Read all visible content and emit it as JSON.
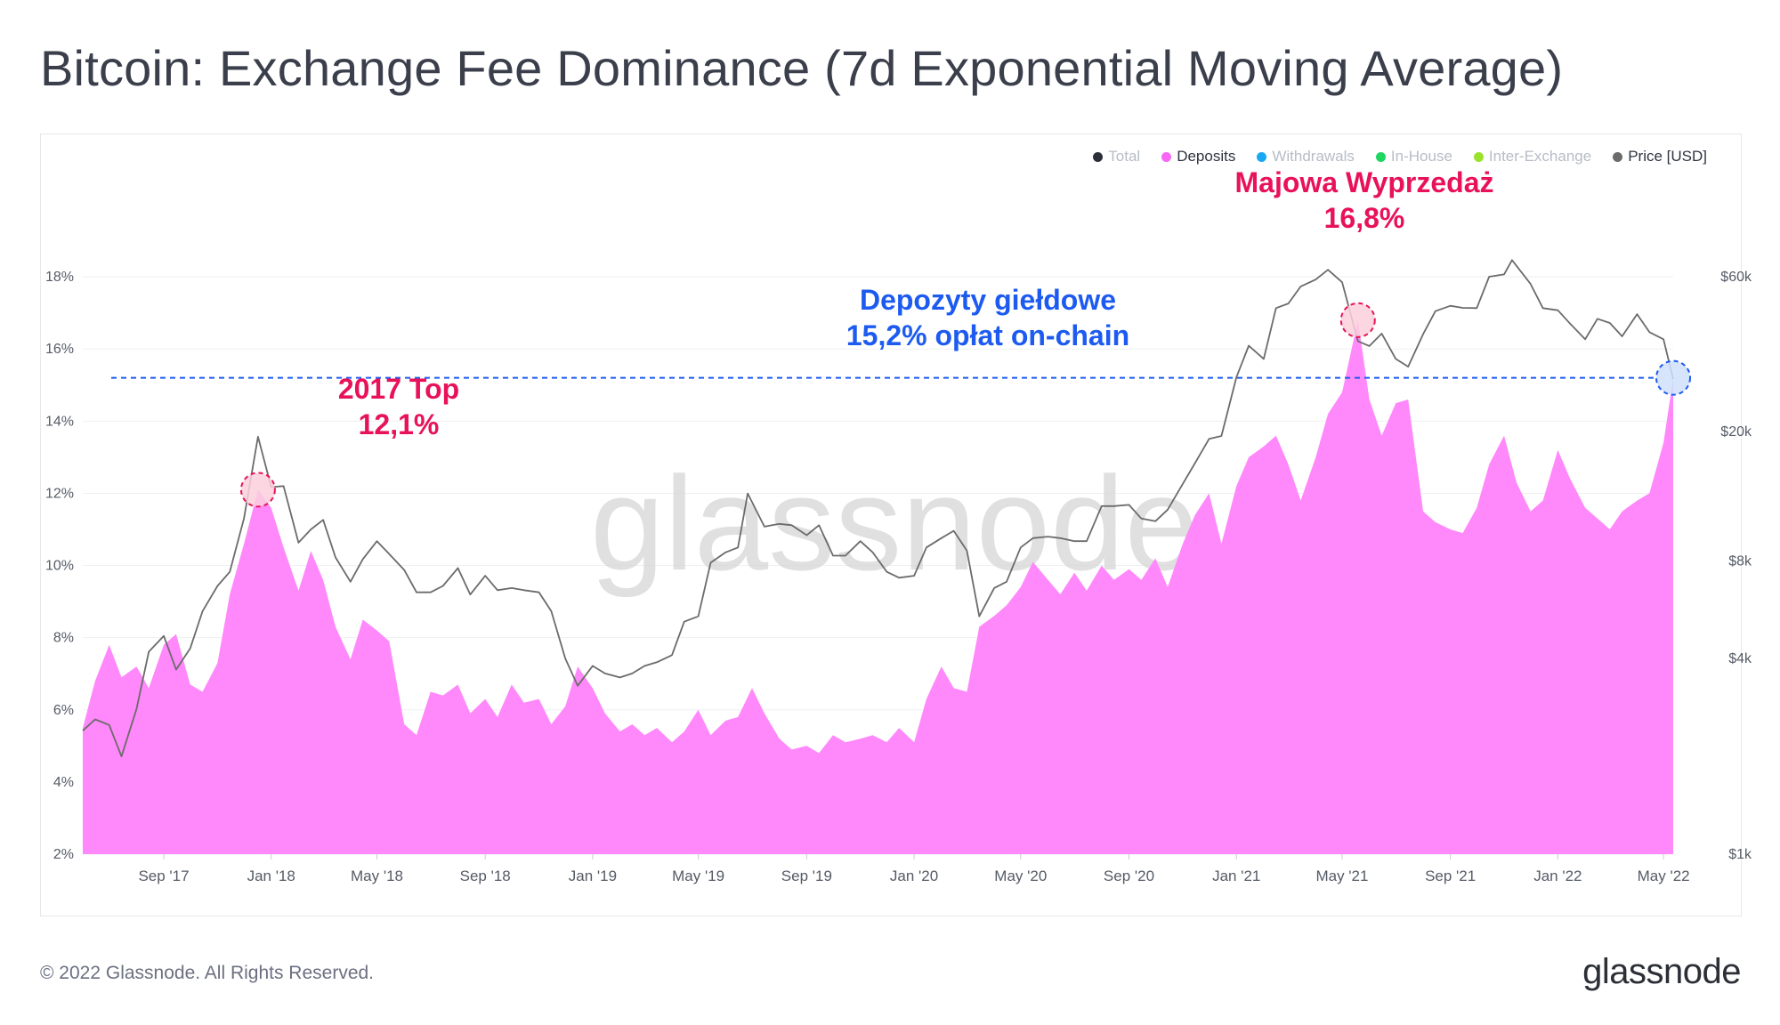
{
  "title": "Bitcoin: Exchange Fee Dominance (7d Exponential Moving Average)",
  "footer": "© 2022 Glassnode. All Rights Reserved.",
  "brand": "glassnode",
  "watermark": "glassnode",
  "legend": [
    {
      "label": "Total",
      "color": "#2b2f3a",
      "active": false
    },
    {
      "label": "Deposits",
      "color": "#f667f6",
      "active": true
    },
    {
      "label": "Withdrawals",
      "color": "#18a9f2",
      "active": false
    },
    {
      "label": "In-House",
      "color": "#1ed760",
      "active": false
    },
    {
      "label": "Inter-Exchange",
      "color": "#9be22d",
      "active": false
    },
    {
      "label": "Price [USD]",
      "color": "#6b6b6b",
      "active": true
    }
  ],
  "annotations": {
    "top2017": {
      "line1": "2017 Top",
      "line2": "12,1%",
      "color": "#e8125a"
    },
    "may": {
      "line1": "Majowa Wyprzedaż",
      "line2": "16,8%",
      "color": "#e8125a"
    },
    "deposits": {
      "line1": "Depozyty giełdowe",
      "line2": "15,2% opłat on-chain",
      "color": "#1d5bf0"
    }
  },
  "chart_data": {
    "type": "area",
    "title": "Bitcoin: Exchange Fee Dominance (7d Exponential Moving Average)",
    "x_tick_labels": [
      "Sep '17",
      "Jan '18",
      "May '18",
      "Sep '18",
      "Jan '19",
      "May '19",
      "Sep '19",
      "Jan '20",
      "May '20",
      "Sep '20",
      "Jan '21",
      "May '21",
      "Sep '21",
      "Jan '22",
      "May '22"
    ],
    "y_left_ticks": [
      "2%",
      "4%",
      "6%",
      "8%",
      "10%",
      "12%",
      "14%",
      "16%",
      "18%"
    ],
    "y_left_range": [
      2,
      20
    ],
    "y_right_ticks": [
      "$1k",
      "$4k",
      "$8k",
      "$20k",
      "$60k"
    ],
    "y_right_scale": "log",
    "y_right_range": [
      1000,
      100000
    ],
    "x_range": [
      "2017-06-01",
      "2022-05-12"
    ],
    "reference_line": {
      "value": 15.2,
      "style": "dashed",
      "color": "#1d5bf0"
    },
    "markers": [
      {
        "date": "2017-12-17",
        "value": 12.1,
        "color": "#e8125a"
      },
      {
        "date": "2021-05-19",
        "value": 16.8,
        "color": "#e8125a"
      },
      {
        "date": "2022-05-12",
        "value": 15.2,
        "color": "#1d5bf0"
      }
    ],
    "series": [
      {
        "name": "Deposits",
        "axis": "left",
        "color": "#ff88fb",
        "points": [
          [
            "2017-06-01",
            5.5
          ],
          [
            "2017-06-15",
            6.8
          ],
          [
            "2017-07-01",
            7.8
          ],
          [
            "2017-07-15",
            6.9
          ],
          [
            "2017-08-01",
            7.2
          ],
          [
            "2017-08-15",
            6.6
          ],
          [
            "2017-09-01",
            7.8
          ],
          [
            "2017-09-15",
            8.1
          ],
          [
            "2017-10-01",
            6.7
          ],
          [
            "2017-10-15",
            6.5
          ],
          [
            "2017-11-01",
            7.3
          ],
          [
            "2017-11-15",
            9.2
          ],
          [
            "2017-12-01",
            10.6
          ],
          [
            "2017-12-17",
            12.1
          ],
          [
            "2018-01-01",
            11.6
          ],
          [
            "2018-01-15",
            10.5
          ],
          [
            "2018-02-01",
            9.3
          ],
          [
            "2018-02-15",
            10.4
          ],
          [
            "2018-03-01",
            9.6
          ],
          [
            "2018-03-15",
            8.3
          ],
          [
            "2018-04-01",
            7.4
          ],
          [
            "2018-04-15",
            8.5
          ],
          [
            "2018-05-01",
            8.2
          ],
          [
            "2018-05-15",
            7.9
          ],
          [
            "2018-06-01",
            5.6
          ],
          [
            "2018-06-15",
            5.3
          ],
          [
            "2018-07-01",
            6.5
          ],
          [
            "2018-07-15",
            6.4
          ],
          [
            "2018-08-01",
            6.7
          ],
          [
            "2018-08-15",
            5.9
          ],
          [
            "2018-09-01",
            6.3
          ],
          [
            "2018-09-15",
            5.8
          ],
          [
            "2018-10-01",
            6.7
          ],
          [
            "2018-10-15",
            6.2
          ],
          [
            "2018-11-01",
            6.3
          ],
          [
            "2018-11-15",
            5.6
          ],
          [
            "2018-12-01",
            6.1
          ],
          [
            "2018-12-15",
            7.2
          ],
          [
            "2019-01-01",
            6.6
          ],
          [
            "2019-01-15",
            5.9
          ],
          [
            "2019-02-01",
            5.4
          ],
          [
            "2019-02-15",
            5.6
          ],
          [
            "2019-03-01",
            5.3
          ],
          [
            "2019-03-15",
            5.5
          ],
          [
            "2019-04-01",
            5.1
          ],
          [
            "2019-04-15",
            5.4
          ],
          [
            "2019-05-01",
            6.0
          ],
          [
            "2019-05-15",
            5.3
          ],
          [
            "2019-06-01",
            5.7
          ],
          [
            "2019-06-15",
            5.8
          ],
          [
            "2019-07-01",
            6.6
          ],
          [
            "2019-07-15",
            5.9
          ],
          [
            "2019-08-01",
            5.2
          ],
          [
            "2019-08-15",
            4.9
          ],
          [
            "2019-09-01",
            5.0
          ],
          [
            "2019-09-15",
            4.8
          ],
          [
            "2019-10-01",
            5.3
          ],
          [
            "2019-10-15",
            5.1
          ],
          [
            "2019-11-01",
            5.2
          ],
          [
            "2019-11-15",
            5.3
          ],
          [
            "2019-12-01",
            5.1
          ],
          [
            "2019-12-15",
            5.5
          ],
          [
            "2020-01-01",
            5.1
          ],
          [
            "2020-01-15",
            6.3
          ],
          [
            "2020-02-01",
            7.2
          ],
          [
            "2020-02-15",
            6.6
          ],
          [
            "2020-03-01",
            6.5
          ],
          [
            "2020-03-15",
            8.3
          ],
          [
            "2020-04-01",
            8.6
          ],
          [
            "2020-04-15",
            8.9
          ],
          [
            "2020-05-01",
            9.4
          ],
          [
            "2020-05-15",
            10.1
          ],
          [
            "2020-06-01",
            9.6
          ],
          [
            "2020-06-15",
            9.2
          ],
          [
            "2020-07-01",
            9.8
          ],
          [
            "2020-07-15",
            9.3
          ],
          [
            "2020-08-01",
            10.0
          ],
          [
            "2020-08-15",
            9.6
          ],
          [
            "2020-09-01",
            9.9
          ],
          [
            "2020-09-15",
            9.6
          ],
          [
            "2020-10-01",
            10.2
          ],
          [
            "2020-10-15",
            9.4
          ],
          [
            "2020-11-01",
            10.6
          ],
          [
            "2020-11-15",
            11.4
          ],
          [
            "2020-12-01",
            12.0
          ],
          [
            "2020-12-15",
            10.6
          ],
          [
            "2021-01-01",
            12.2
          ],
          [
            "2021-01-15",
            13.0
          ],
          [
            "2021-02-01",
            13.3
          ],
          [
            "2021-02-15",
            13.6
          ],
          [
            "2021-03-01",
            12.8
          ],
          [
            "2021-03-15",
            11.8
          ],
          [
            "2021-04-01",
            13.0
          ],
          [
            "2021-04-15",
            14.2
          ],
          [
            "2021-05-01",
            14.8
          ],
          [
            "2021-05-19",
            16.8
          ],
          [
            "2021-06-01",
            14.6
          ],
          [
            "2021-06-15",
            13.6
          ],
          [
            "2021-07-01",
            14.5
          ],
          [
            "2021-07-15",
            14.6
          ],
          [
            "2021-08-01",
            11.5
          ],
          [
            "2021-08-15",
            11.2
          ],
          [
            "2021-09-01",
            11.0
          ],
          [
            "2021-09-15",
            10.9
          ],
          [
            "2021-10-01",
            11.6
          ],
          [
            "2021-10-15",
            12.8
          ],
          [
            "2021-11-01",
            13.6
          ],
          [
            "2021-11-15",
            12.3
          ],
          [
            "2021-12-01",
            11.5
          ],
          [
            "2021-12-15",
            11.8
          ],
          [
            "2022-01-01",
            13.2
          ],
          [
            "2022-01-15",
            12.4
          ],
          [
            "2022-02-01",
            11.6
          ],
          [
            "2022-02-15",
            11.3
          ],
          [
            "2022-03-01",
            11.0
          ],
          [
            "2022-03-15",
            11.5
          ],
          [
            "2022-04-01",
            11.8
          ],
          [
            "2022-04-15",
            12.0
          ],
          [
            "2022-05-01",
            13.4
          ],
          [
            "2022-05-12",
            15.2
          ]
        ]
      },
      {
        "name": "Price [USD]",
        "axis": "right",
        "color": "#6b6b6b",
        "points": [
          [
            "2017-06-01",
            2400
          ],
          [
            "2017-06-15",
            2600
          ],
          [
            "2017-07-01",
            2500
          ],
          [
            "2017-07-15",
            2000
          ],
          [
            "2017-08-01",
            2800
          ],
          [
            "2017-08-15",
            4200
          ],
          [
            "2017-09-01",
            4700
          ],
          [
            "2017-09-15",
            3700
          ],
          [
            "2017-10-01",
            4300
          ],
          [
            "2017-10-15",
            5600
          ],
          [
            "2017-11-01",
            6700
          ],
          [
            "2017-11-15",
            7400
          ],
          [
            "2017-12-01",
            10800
          ],
          [
            "2017-12-17",
            19300
          ],
          [
            "2018-01-01",
            13500
          ],
          [
            "2018-01-15",
            13600
          ],
          [
            "2018-02-01",
            9100
          ],
          [
            "2018-02-15",
            10000
          ],
          [
            "2018-03-01",
            10700
          ],
          [
            "2018-03-15",
            8200
          ],
          [
            "2018-04-01",
            6900
          ],
          [
            "2018-04-15",
            8100
          ],
          [
            "2018-05-01",
            9200
          ],
          [
            "2018-05-15",
            8400
          ],
          [
            "2018-06-01",
            7500
          ],
          [
            "2018-06-15",
            6400
          ],
          [
            "2018-07-01",
            6400
          ],
          [
            "2018-07-15",
            6700
          ],
          [
            "2018-08-01",
            7600
          ],
          [
            "2018-08-15",
            6300
          ],
          [
            "2018-09-01",
            7200
          ],
          [
            "2018-09-15",
            6500
          ],
          [
            "2018-10-01",
            6600
          ],
          [
            "2018-10-15",
            6500
          ],
          [
            "2018-11-01",
            6400
          ],
          [
            "2018-11-15",
            5600
          ],
          [
            "2018-12-01",
            4000
          ],
          [
            "2018-12-15",
            3300
          ],
          [
            "2019-01-01",
            3800
          ],
          [
            "2019-01-15",
            3600
          ],
          [
            "2019-02-01",
            3500
          ],
          [
            "2019-02-15",
            3600
          ],
          [
            "2019-03-01",
            3800
          ],
          [
            "2019-03-15",
            3900
          ],
          [
            "2019-04-01",
            4100
          ],
          [
            "2019-04-15",
            5200
          ],
          [
            "2019-05-01",
            5400
          ],
          [
            "2019-05-15",
            7900
          ],
          [
            "2019-06-01",
            8500
          ],
          [
            "2019-06-15",
            8800
          ],
          [
            "2019-06-26",
            12900
          ],
          [
            "2019-07-15",
            10200
          ],
          [
            "2019-08-01",
            10400
          ],
          [
            "2019-08-15",
            10300
          ],
          [
            "2019-09-01",
            9600
          ],
          [
            "2019-09-15",
            10300
          ],
          [
            "2019-10-01",
            8300
          ],
          [
            "2019-10-15",
            8300
          ],
          [
            "2019-11-01",
            9200
          ],
          [
            "2019-11-15",
            8500
          ],
          [
            "2019-12-01",
            7400
          ],
          [
            "2019-12-15",
            7100
          ],
          [
            "2020-01-01",
            7200
          ],
          [
            "2020-01-15",
            8800
          ],
          [
            "2020-02-01",
            9400
          ],
          [
            "2020-02-15",
            9900
          ],
          [
            "2020-03-01",
            8600
          ],
          [
            "2020-03-15",
            5400
          ],
          [
            "2020-04-01",
            6600
          ],
          [
            "2020-04-15",
            6900
          ],
          [
            "2020-05-01",
            8800
          ],
          [
            "2020-05-15",
            9400
          ],
          [
            "2020-06-01",
            9500
          ],
          [
            "2020-06-15",
            9400
          ],
          [
            "2020-07-01",
            9200
          ],
          [
            "2020-07-15",
            9200
          ],
          [
            "2020-08-01",
            11800
          ],
          [
            "2020-08-15",
            11800
          ],
          [
            "2020-09-01",
            11900
          ],
          [
            "2020-09-15",
            10800
          ],
          [
            "2020-10-01",
            10600
          ],
          [
            "2020-10-15",
            11500
          ],
          [
            "2020-11-01",
            13800
          ],
          [
            "2020-11-15",
            16000
          ],
          [
            "2020-12-01",
            19000
          ],
          [
            "2020-12-15",
            19400
          ],
          [
            "2021-01-01",
            29400
          ],
          [
            "2021-01-15",
            36800
          ],
          [
            "2021-02-01",
            33500
          ],
          [
            "2021-02-15",
            48000
          ],
          [
            "2021-03-01",
            49600
          ],
          [
            "2021-03-15",
            56000
          ],
          [
            "2021-04-01",
            58800
          ],
          [
            "2021-04-15",
            63000
          ],
          [
            "2021-05-01",
            57700
          ],
          [
            "2021-05-19",
            38000
          ],
          [
            "2021-06-01",
            36700
          ],
          [
            "2021-06-15",
            40100
          ],
          [
            "2021-07-01",
            33500
          ],
          [
            "2021-07-15",
            31700
          ],
          [
            "2021-08-01",
            39900
          ],
          [
            "2021-08-15",
            47000
          ],
          [
            "2021-09-01",
            48800
          ],
          [
            "2021-09-15",
            48100
          ],
          [
            "2021-10-01",
            48000
          ],
          [
            "2021-10-15",
            60000
          ],
          [
            "2021-11-01",
            61000
          ],
          [
            "2021-11-10",
            67500
          ],
          [
            "2021-12-01",
            57000
          ],
          [
            "2021-12-15",
            48000
          ],
          [
            "2022-01-01",
            47300
          ],
          [
            "2022-01-15",
            43000
          ],
          [
            "2022-02-01",
            38500
          ],
          [
            "2022-02-15",
            44500
          ],
          [
            "2022-03-01",
            43200
          ],
          [
            "2022-03-15",
            39300
          ],
          [
            "2022-04-01",
            46000
          ],
          [
            "2022-04-15",
            40500
          ],
          [
            "2022-05-01",
            38500
          ],
          [
            "2022-05-12",
            29000
          ]
        ]
      }
    ]
  }
}
